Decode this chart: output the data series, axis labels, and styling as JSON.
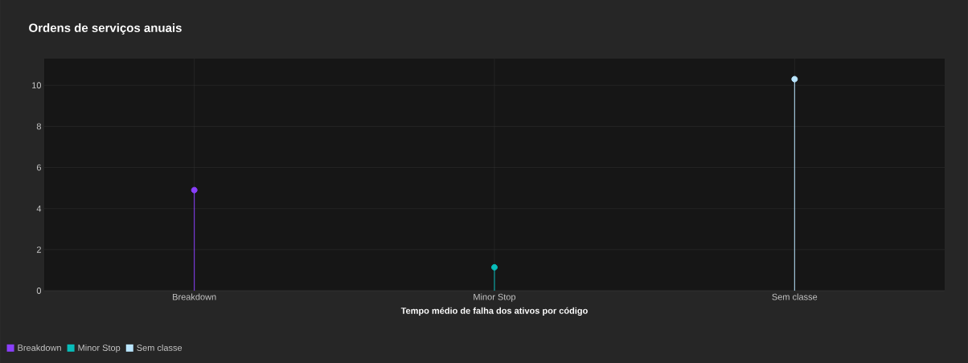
{
  "chart_data": {
    "type": "lollipop",
    "title": "Ordens de serviços anuais",
    "xlabel": "Tempo médio de falha dos ativos por código",
    "categories": [
      "Breakdown",
      "Minor Stop",
      "Sem classe"
    ],
    "series": [
      {
        "name": "Breakdown",
        "color": "#8a3ffc",
        "values": [
          4.9,
          null,
          null
        ]
      },
      {
        "name": "Minor Stop",
        "color": "#08bdba",
        "values": [
          null,
          1.14,
          null
        ]
      },
      {
        "name": "Sem classe",
        "color": "#bae6ff",
        "values": [
          null,
          null,
          10.3
        ]
      }
    ],
    "ylim": [
      0,
      11.3
    ],
    "yticks": [
      0,
      2,
      4,
      6,
      8,
      10
    ],
    "grid": true,
    "legend": "bottom left",
    "marker": "circle"
  }
}
